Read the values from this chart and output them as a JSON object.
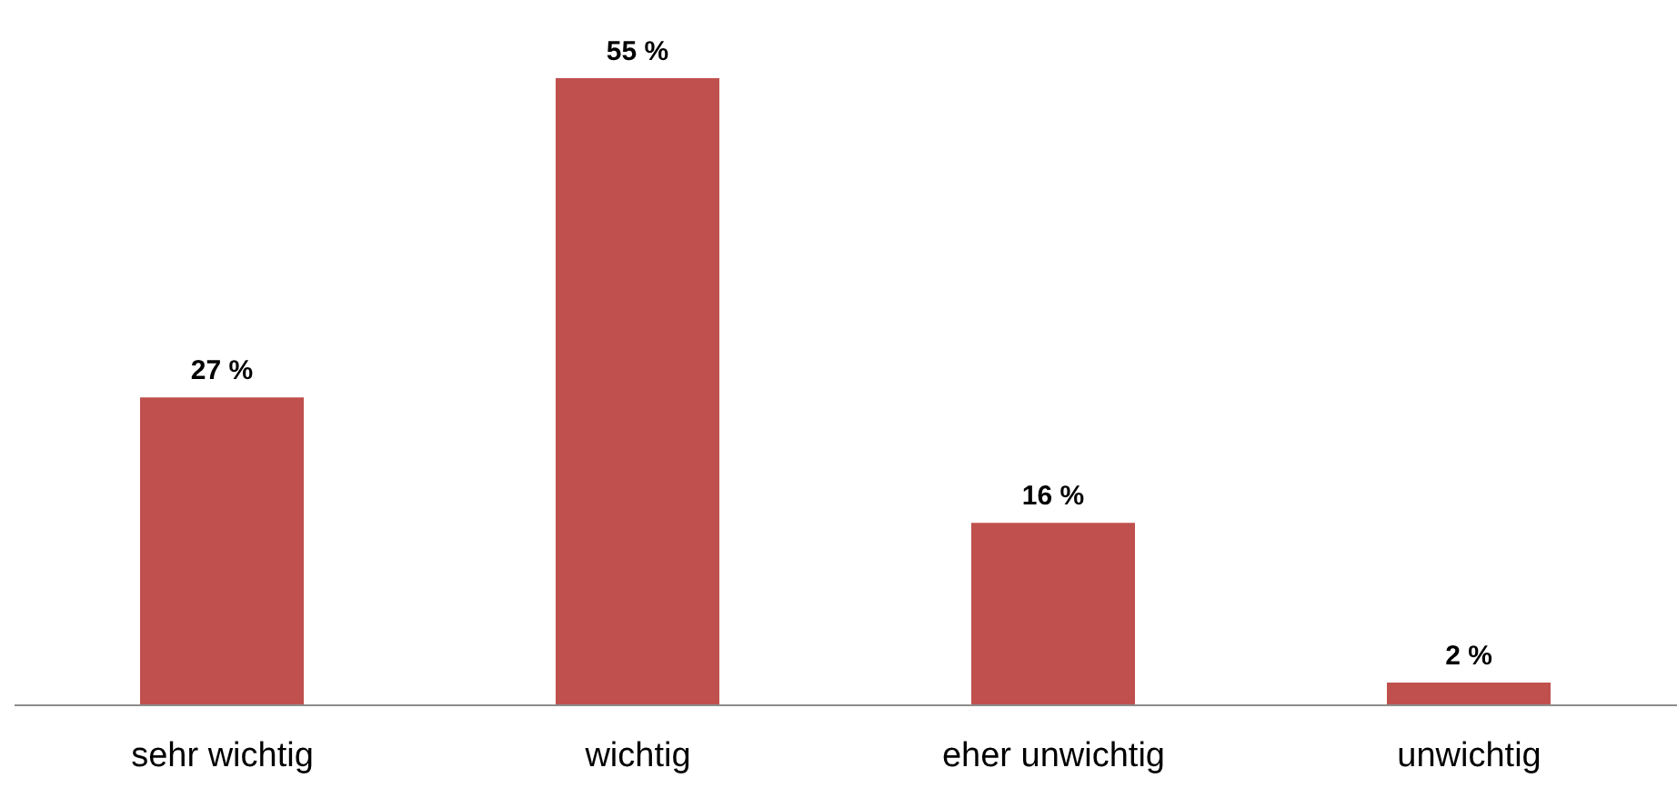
{
  "chart_data": {
    "type": "bar",
    "categories": [
      "sehr wichtig",
      "wichtig",
      "eher unwichtig",
      "unwichtig"
    ],
    "values": [
      27,
      55,
      16,
      2
    ],
    "color": "#c0504d",
    "value_labels": [
      "27 %",
      "55 %",
      "16 %",
      "2 %"
    ]
  }
}
